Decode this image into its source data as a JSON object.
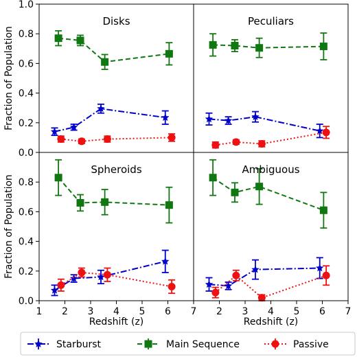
{
  "chart_data": [
    {
      "type": "line",
      "title": "Disks",
      "xlabel": "",
      "ylabel": "Fraction of Population",
      "xlim": [
        1,
        7
      ],
      "ylim": [
        0,
        1
      ],
      "series": [
        {
          "name": "Starburst",
          "x": [
            1.6,
            2.35,
            3.4,
            5.9
          ],
          "y": [
            0.14,
            0.17,
            0.295,
            0.235
          ],
          "err": [
            0.025,
            0.02,
            0.03,
            0.045
          ]
        },
        {
          "name": "Main Sequence",
          "x": [
            1.75,
            2.6,
            3.55,
            6.05
          ],
          "y": [
            0.77,
            0.755,
            0.61,
            0.665
          ],
          "err": [
            0.05,
            0.035,
            0.05,
            0.075
          ]
        },
        {
          "name": "Passive",
          "x": [
            1.85,
            2.65,
            3.65,
            6.15
          ],
          "y": [
            0.09,
            0.075,
            0.09,
            0.1
          ],
          "err": [
            0.02,
            0.015,
            0.02,
            0.025
          ]
        }
      ]
    },
    {
      "type": "line",
      "title": "Peculiars",
      "xlabel": "",
      "ylabel": "",
      "xlim": [
        1,
        7
      ],
      "ylim": [
        0,
        1
      ],
      "series": [
        {
          "name": "Starburst",
          "x": [
            1.6,
            2.35,
            3.4,
            5.9
          ],
          "y": [
            0.225,
            0.215,
            0.24,
            0.145
          ],
          "err": [
            0.04,
            0.025,
            0.035,
            0.045
          ]
        },
        {
          "name": "Main Sequence",
          "x": [
            1.75,
            2.6,
            3.55,
            6.05
          ],
          "y": [
            0.725,
            0.72,
            0.705,
            0.715
          ],
          "err": [
            0.075,
            0.04,
            0.065,
            0.09
          ]
        },
        {
          "name": "Passive",
          "x": [
            1.85,
            2.65,
            3.65,
            6.15
          ],
          "y": [
            0.05,
            0.07,
            0.058,
            0.135
          ],
          "err": [
            0.02,
            0.015,
            0.02,
            0.04
          ]
        }
      ]
    },
    {
      "type": "line",
      "title": "Spheroids",
      "xlabel": "Redshift (z)",
      "ylabel": "Fraction of Population",
      "xlim": [
        1,
        7
      ],
      "ylim": [
        0,
        1
      ],
      "series": [
        {
          "name": "Starburst",
          "x": [
            1.6,
            2.35,
            3.4,
            5.9
          ],
          "y": [
            0.07,
            0.15,
            0.16,
            0.265
          ],
          "err": [
            0.035,
            0.025,
            0.045,
            0.075
          ]
        },
        {
          "name": "Main Sequence",
          "x": [
            1.75,
            2.6,
            3.55,
            6.05
          ],
          "y": [
            0.83,
            0.66,
            0.665,
            0.645
          ],
          "err": [
            0.12,
            0.055,
            0.085,
            0.12
          ]
        },
        {
          "name": "Passive",
          "x": [
            1.85,
            2.65,
            3.65,
            6.15
          ],
          "y": [
            0.105,
            0.19,
            0.175,
            0.095
          ],
          "err": [
            0.04,
            0.03,
            0.045,
            0.045
          ]
        }
      ]
    },
    {
      "type": "line",
      "title": "Ambiguous",
      "xlabel": "Redshift (z)",
      "ylabel": "",
      "xlim": [
        1,
        7
      ],
      "ylim": [
        0,
        1
      ],
      "series": [
        {
          "name": "Starburst",
          "x": [
            1.6,
            2.35,
            3.4,
            5.9
          ],
          "y": [
            0.11,
            0.1,
            0.21,
            0.22
          ],
          "err": [
            0.045,
            0.025,
            0.065,
            0.07
          ]
        },
        {
          "name": "Main Sequence",
          "x": [
            1.75,
            2.6,
            3.55,
            6.05
          ],
          "y": [
            0.83,
            0.73,
            0.77,
            0.61
          ],
          "err": [
            0.12,
            0.065,
            0.12,
            0.12
          ]
        },
        {
          "name": "Passive",
          "x": [
            1.85,
            2.65,
            3.65,
            6.15
          ],
          "y": [
            0.055,
            0.17,
            0.02,
            0.17
          ],
          "err": [
            0.035,
            0.035,
            0.02,
            0.065
          ]
        }
      ]
    }
  ],
  "axes": {
    "x_ticks": [
      "1",
      "2",
      "3",
      "4",
      "5",
      "6",
      "7"
    ],
    "y_ticks": [
      "0.0",
      "0.2",
      "0.4",
      "0.6",
      "0.8",
      "1.0"
    ]
  },
  "legend": {
    "placement": "bottom",
    "entries": [
      {
        "name": "Starburst",
        "color": "#0000cc",
        "marker": "star",
        "linestyle": "dash-dot"
      },
      {
        "name": "Main Sequence",
        "color": "#117711",
        "marker": "square",
        "linestyle": "dashed"
      },
      {
        "name": "Passive",
        "color": "#ee1111",
        "marker": "circle",
        "linestyle": "dotted"
      }
    ]
  }
}
